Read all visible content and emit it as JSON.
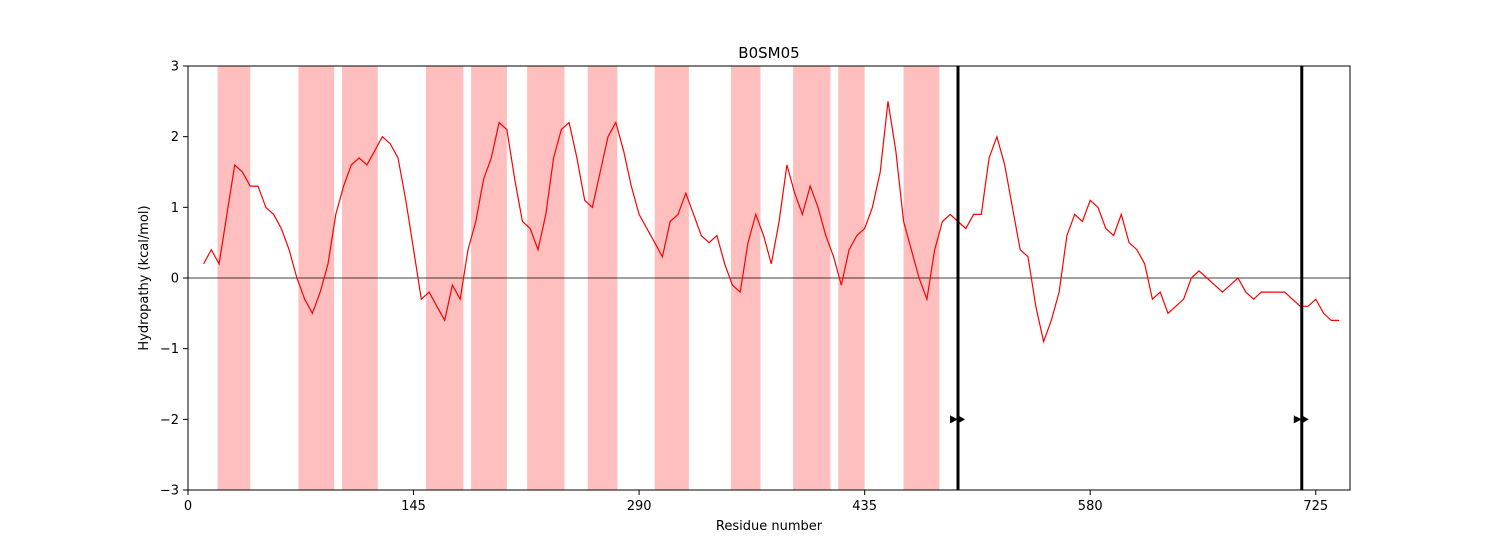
{
  "chart_data": {
    "type": "line",
    "title": "B0SM05",
    "xlabel": "Residue number",
    "ylabel": "Hydropathy (kcal/mol)",
    "xlim": [
      0,
      747
    ],
    "ylim": [
      -3,
      3
    ],
    "xticks": [
      0,
      145,
      290,
      435,
      580,
      725
    ],
    "yticks": [
      -3,
      -2,
      -1,
      0,
      1,
      2,
      3
    ],
    "zero_line": true,
    "line_color": "#ff0000",
    "band_color": "#ffbfbf",
    "marker_line_color": "#000000",
    "series": [
      {
        "x": [
          10,
          15,
          20,
          25,
          30,
          35,
          40,
          45,
          50,
          55,
          60,
          65,
          70,
          75,
          80,
          85,
          90,
          95,
          100,
          105,
          110,
          115,
          120,
          125,
          130,
          135,
          140,
          145,
          150,
          155,
          160,
          165,
          170,
          175,
          180,
          185,
          190,
          195,
          200,
          205,
          210,
          215,
          220,
          225,
          230,
          235,
          240,
          245,
          250,
          255,
          260,
          265,
          270,
          275,
          280,
          285,
          290,
          295,
          300,
          305,
          310,
          315,
          320,
          325,
          330,
          335,
          340,
          345,
          350,
          355,
          360,
          365,
          370,
          375,
          380,
          385,
          390,
          395,
          400,
          405,
          410,
          415,
          420,
          425,
          430,
          435,
          440,
          445,
          450,
          455,
          460,
          465,
          470,
          475,
          480,
          485,
          490,
          495,
          500,
          505,
          510,
          515,
          520,
          525,
          530,
          535,
          540,
          545,
          550,
          555,
          560,
          565,
          570,
          575,
          580,
          585,
          590,
          595,
          600,
          605,
          610,
          615,
          620,
          625,
          630,
          635,
          640,
          645,
          650,
          655,
          660,
          665,
          670,
          675,
          680,
          685,
          690,
          695,
          700,
          705,
          710,
          715,
          720,
          725,
          730,
          735,
          740
        ],
        "y": [
          0.2,
          0.4,
          0.2,
          0.9,
          1.6,
          1.5,
          1.3,
          1.3,
          1.0,
          0.9,
          0.7,
          0.4,
          0.0,
          -0.3,
          -0.5,
          -0.2,
          0.2,
          0.9,
          1.3,
          1.6,
          1.7,
          1.6,
          1.8,
          2.0,
          1.9,
          1.7,
          1.1,
          0.4,
          -0.3,
          -0.2,
          -0.4,
          -0.6,
          -0.1,
          -0.3,
          0.4,
          0.8,
          1.4,
          1.7,
          2.2,
          2.1,
          1.4,
          0.8,
          0.7,
          0.4,
          0.9,
          1.7,
          2.1,
          2.2,
          1.7,
          1.1,
          1.0,
          1.5,
          2.0,
          2.2,
          1.8,
          1.3,
          0.9,
          0.7,
          0.5,
          0.3,
          0.8,
          0.9,
          1.2,
          0.9,
          0.6,
          0.5,
          0.6,
          0.2,
          -0.1,
          -0.2,
          0.5,
          0.9,
          0.6,
          0.2,
          0.8,
          1.6,
          1.2,
          0.9,
          1.3,
          1.0,
          0.6,
          0.3,
          -0.1,
          0.4,
          0.6,
          0.7,
          1.0,
          1.5,
          2.5,
          1.8,
          0.8,
          0.4,
          0.0,
          -0.3,
          0.4,
          0.8,
          0.9,
          0.8,
          0.7,
          0.9,
          0.9,
          1.7,
          2.0,
          1.6,
          1.0,
          0.4,
          0.3,
          -0.4,
          -0.9,
          -0.6,
          -0.2,
          0.6,
          0.9,
          0.8,
          1.1,
          1.0,
          0.7,
          0.6,
          0.9,
          0.5,
          0.4,
          0.2,
          -0.3,
          -0.2,
          -0.5,
          -0.4,
          -0.3,
          0.0,
          0.1,
          0.0,
          -0.1,
          -0.2,
          -0.1,
          0.0,
          -0.2,
          -0.3,
          -0.2,
          -0.2,
          -0.2,
          -0.2,
          -0.3,
          -0.4,
          -0.4,
          -0.3,
          -0.5,
          -0.6,
          -0.6
        ],
        "note": ""
      }
    ],
    "bands": [
      [
        19,
        40
      ],
      [
        71,
        94
      ],
      [
        99,
        122
      ],
      [
        153,
        177
      ],
      [
        182,
        205
      ],
      [
        218,
        242
      ],
      [
        257,
        276
      ],
      [
        300,
        322
      ],
      [
        349,
        368
      ],
      [
        389,
        413
      ],
      [
        418,
        435
      ],
      [
        460,
        483
      ]
    ],
    "vertical_lines": [
      495,
      716
    ],
    "markers": [
      {
        "x": 495,
        "y": -2
      },
      {
        "x": 716,
        "y": -2
      }
    ]
  }
}
